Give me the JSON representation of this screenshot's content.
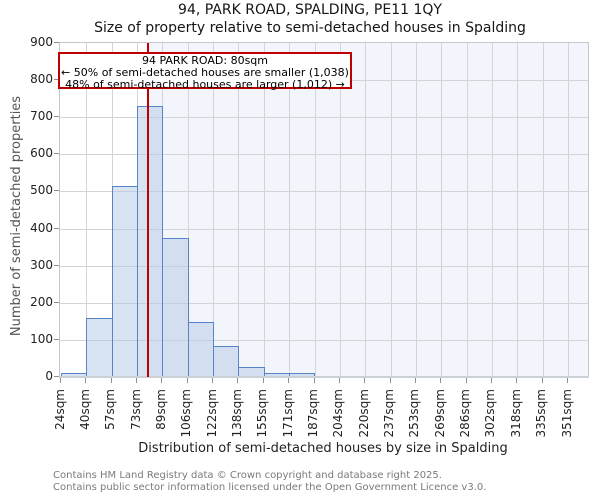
{
  "footer": {
    "line1": "Contains HM Land Registry data © Crown copyright and database right 2025.",
    "line2": "Contains public sector information licensed under the Open Government Licence v3.0."
  },
  "chart_data": {
    "type": "bar",
    "title": "94, PARK ROAD, SPALDING, PE11 1QY",
    "subtitle": "Size of property relative to semi-detached houses in Spalding",
    "xlabel": "Distribution of semi-detached houses by size in Spalding",
    "ylabel": "Number of semi-detached properties",
    "x_tick_labels": [
      "24sqm",
      "40sqm",
      "57sqm",
      "73sqm",
      "89sqm",
      "106sqm",
      "122sqm",
      "138sqm",
      "155sqm",
      "171sqm",
      "187sqm",
      "204sqm",
      "220sqm",
      "237sqm",
      "253sqm",
      "269sqm",
      "286sqm",
      "302sqm",
      "318sqm",
      "335sqm",
      "351sqm"
    ],
    "bin_edges_sqm": [
      24,
      40,
      57,
      73,
      89,
      106,
      122,
      138,
      155,
      171,
      187,
      204,
      220,
      237,
      253,
      269,
      286,
      302,
      318,
      335,
      351
    ],
    "values": [
      10,
      160,
      515,
      730,
      375,
      148,
      83,
      28,
      12,
      12,
      0,
      4,
      4,
      4,
      4,
      4,
      4,
      0,
      0,
      0
    ],
    "ylim": [
      0,
      900
    ],
    "y_ticks": [
      0,
      100,
      200,
      300,
      400,
      500,
      600,
      700,
      800,
      900
    ],
    "grid": true,
    "marker": {
      "value_sqm": 80,
      "color": "#c00000"
    },
    "annotation": {
      "line1": "94 PARK ROAD: 80sqm",
      "line2": "← 50% of semi-detached houses are smaller (1,038)",
      "line3": "48% of semi-detached houses are larger (1,012) →"
    },
    "colors": {
      "bar_fill": "rgba(179,201,231,0.5)",
      "bar_edge": "#5585c8",
      "marker_line": "#c00000",
      "region_right_bg": "#f2f5fb",
      "gridline": "#d4d4d4",
      "annotation_border": "#c00000"
    }
  }
}
